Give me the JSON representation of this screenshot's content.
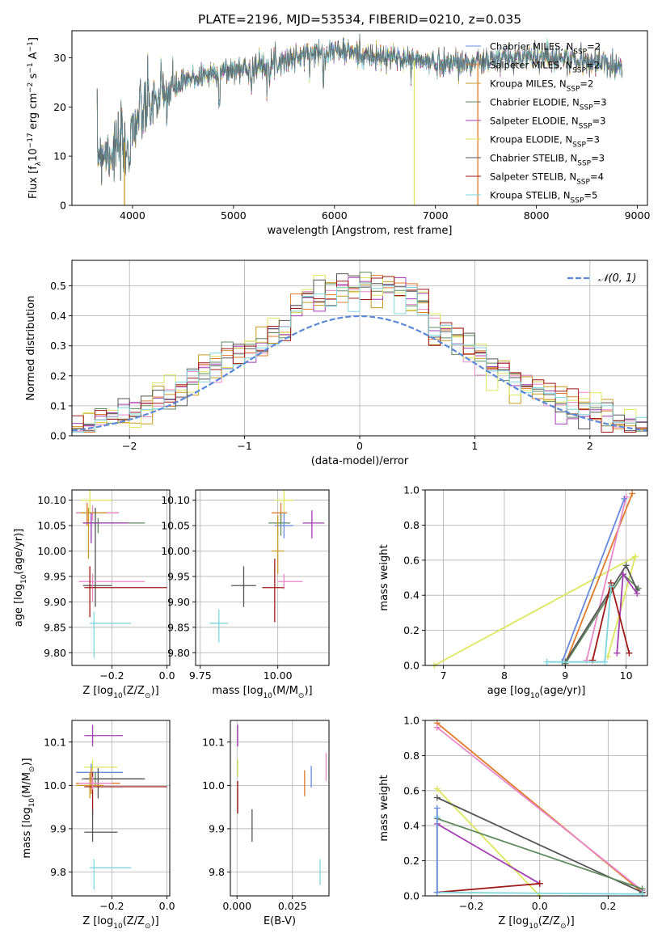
{
  "title": "PLATE=2196, MJD=53534, FIBERID=0210, z=0.035",
  "colors": [
    "#6688dd",
    "#e07a28",
    "#c99a20",
    "#5e8a5e",
    "#a23cb0",
    "#dde65a",
    "#555555",
    "#a01818",
    "#7ed6dd",
    "#e888c8"
  ],
  "chart_data": [
    {
      "id": "spectrum",
      "type": "line",
      "xlabel": "wavelength [Angstrom, rest frame]",
      "ylabel": "Flux [f",
      "ylabel_sub": "λ",
      "ylabel_rest": "10",
      "ylabel_sup": "−17",
      "ylabel_units": " erg cm",
      "ylabel_sup2": "−2",
      "ylabel_units2": " s",
      "ylabel_sup3": "−1",
      "ylabel_units3": " A",
      "ylabel_sup4": "−1",
      "ylabel_end": "]",
      "xlim": [
        3400,
        9100
      ],
      "ylim": [
        0,
        35.5
      ],
      "xticks": [
        4000,
        5000,
        6000,
        7000,
        8000,
        9000
      ],
      "yticks": [
        0,
        10,
        20,
        30
      ],
      "continuum": [
        [
          3650,
          11
        ],
        [
          3800,
          11
        ],
        [
          3900,
          12
        ],
        [
          4000,
          16
        ],
        [
          4100,
          19
        ],
        [
          4200,
          21
        ],
        [
          4300,
          22
        ],
        [
          4500,
          25
        ],
        [
          4700,
          26.5
        ],
        [
          5000,
          27.5
        ],
        [
          5200,
          28
        ],
        [
          5400,
          29
        ],
        [
          5600,
          30
        ],
        [
          5800,
          31
        ],
        [
          6000,
          31.5
        ],
        [
          6200,
          31
        ],
        [
          6400,
          30
        ],
        [
          6600,
          30
        ],
        [
          6800,
          29.5
        ],
        [
          7000,
          29
        ],
        [
          7200,
          29
        ],
        [
          7400,
          29
        ],
        [
          7600,
          29.5
        ],
        [
          7800,
          30
        ],
        [
          8000,
          30.5
        ],
        [
          8200,
          30
        ],
        [
          8400,
          29.5
        ],
        [
          8600,
          29
        ],
        [
          8850,
          28.5
        ]
      ],
      "drops": [
        {
          "x": 3920,
          "series": 2
        },
        {
          "x": 6790,
          "series": 5
        },
        {
          "x": 7420,
          "series": 1
        }
      ],
      "series": [
        {
          "name": "Chabrier MILES, N",
          "sub": "SSP",
          "eq": "=2"
        },
        {
          "name": "Salpeter MILES, N",
          "sub": "SSP",
          "eq": "=2"
        },
        {
          "name": "Kroupa MILES, N",
          "sub": "SSP",
          "eq": "=2"
        },
        {
          "name": "Chabrier ELODIE, N",
          "sub": "SSP",
          "eq": "=3"
        },
        {
          "name": "Salpeter ELODIE, N",
          "sub": "SSP",
          "eq": "=3"
        },
        {
          "name": "Kroupa ELODIE, N",
          "sub": "SSP",
          "eq": "=3"
        },
        {
          "name": "Chabrier STELIB, N",
          "sub": "SSP",
          "eq": "=3"
        },
        {
          "name": "Salpeter STELIB, N",
          "sub": "SSP",
          "eq": "=4"
        },
        {
          "name": "Kroupa STELIB, N",
          "sub": "SSP",
          "eq": "=5"
        }
      ]
    },
    {
      "id": "hist",
      "type": "area",
      "xlabel": "(data-model)/error",
      "ylabel": "Normed distribution",
      "xlim": [
        -2.5,
        2.5
      ],
      "ylim": [
        0,
        0.585
      ],
      "xticks": [
        -2,
        -1,
        0,
        1,
        2
      ],
      "xtick_labels": [
        "−2",
        "−1",
        "0",
        "1",
        "2"
      ],
      "yticks": [
        0.0,
        0.1,
        0.2,
        0.3,
        0.4,
        0.5
      ],
      "ytick_labels": [
        "0.0",
        "0.1",
        "0.2",
        "0.3",
        "0.4",
        "0.5"
      ],
      "bin_width": 0.1,
      "legend": "𝒩(0, 1)"
    },
    {
      "id": "age_vs_Z",
      "type": "scatter",
      "xlabel": "Z [log",
      "xlabel_sub": "10",
      "xlabel_rest": "(Z/Z",
      "xlabel_sub2": "⊙",
      "xlabel_end": ")]",
      "ylabel": "age  [log",
      "ylabel_sub": "10",
      "ylabel_rest": "(age/yr)]",
      "xlim": [
        -0.345,
        0.01
      ],
      "ylim": [
        9.775,
        10.12
      ],
      "xticks": [
        -0.2,
        0.0
      ],
      "xtick_labels": [
        "−0.2",
        "0.0"
      ],
      "yticks": [
        9.8,
        9.85,
        9.9,
        9.95,
        10.0,
        10.05,
        10.1
      ],
      "ytick_labels": [
        "9.80",
        "9.85",
        "9.90",
        "9.95",
        "10.00",
        "10.05",
        "10.10"
      ],
      "points": [
        {
          "c": 5,
          "x": -0.28,
          "xl": -0.315,
          "xh": -0.2,
          "y": 10.1,
          "yl": 10.075,
          "yh": 10.12
        },
        {
          "c": 1,
          "x": -0.29,
          "xl": -0.33,
          "xh": -0.175,
          "y": 10.075,
          "yl": 10.05,
          "yh": 10.095
        },
        {
          "c": 9,
          "x": -0.27,
          "xl": -0.33,
          "xh": -0.175,
          "y": 10.075,
          "yl": 10.06,
          "yh": 10.09
        },
        {
          "c": 2,
          "x": -0.285,
          "xl": -0.315,
          "xh": -0.22,
          "y": 10.075,
          "yl": 9.985,
          "yh": 10.085
        },
        {
          "c": 0,
          "x": -0.275,
          "xl": -0.305,
          "xh": -0.165,
          "y": 10.055,
          "yl": 10.02,
          "yh": 10.075
        },
        {
          "c": 3,
          "x": -0.25,
          "xl": -0.305,
          "xh": -0.08,
          "y": 10.055,
          "yl": 10.035,
          "yh": 10.065
        },
        {
          "c": 4,
          "x": -0.275,
          "xl": -0.305,
          "xh": -0.14,
          "y": 10.055,
          "yl": 10.015,
          "yh": 10.075
        },
        {
          "c": 6,
          "x": -0.26,
          "xl": -0.305,
          "xh": -0.2,
          "y": 9.932,
          "yl": 9.89,
          "yh": 10.085
        },
        {
          "c": 9,
          "x": -0.27,
          "xl": -0.32,
          "xh": -0.08,
          "y": 9.94,
          "yl": 9.9,
          "yh": 9.955
        },
        {
          "c": 7,
          "x": -0.28,
          "xl": -0.3,
          "xh": 0.0,
          "y": 9.928,
          "yl": 9.87,
          "yh": 9.97
        },
        {
          "c": 8,
          "x": -0.265,
          "xl": -0.28,
          "xh": -0.13,
          "y": 9.858,
          "yl": 9.79,
          "yh": 9.88
        }
      ]
    },
    {
      "id": "age_vs_mass",
      "type": "scatter",
      "xlabel": "mass [log",
      "xlabel_sub": "10",
      "xlabel_rest": "(M/M",
      "xlabel_sub2": "⊙",
      "xlabel_end": ")]",
      "xlim": [
        9.735,
        10.165
      ],
      "ylim": [
        9.775,
        10.12
      ],
      "xticks": [
        9.75,
        10.0
      ],
      "xtick_labels": [
        "9.75",
        "10.00"
      ],
      "yticks": [
        9.8,
        9.85,
        9.9,
        9.95,
        10.0,
        10.05,
        10.1
      ],
      "ytick_labels": [
        "9.80",
        "9.85",
        "9.90",
        "9.95",
        "10.00",
        "10.05",
        "10.10"
      ],
      "points": [
        {
          "c": 5,
          "x": 10.02,
          "xl": 9.99,
          "xh": 10.05,
          "y": 10.1,
          "yl": 10.075,
          "yh": 10.12
        },
        {
          "c": 1,
          "x": 10.01,
          "xl": 9.98,
          "xh": 10.03,
          "y": 10.075,
          "yl": 10.055,
          "yh": 10.095
        },
        {
          "c": 4,
          "x": 10.11,
          "xl": 10.08,
          "xh": 10.15,
          "y": 10.055,
          "yl": 10.025,
          "yh": 10.08
        },
        {
          "c": 3,
          "x": 10.01,
          "xl": 9.97,
          "xh": 10.04,
          "y": 10.055,
          "yl": 10.03,
          "yh": 10.075
        },
        {
          "c": 0,
          "x": 10.02,
          "xl": 9.99,
          "xh": 10.05,
          "y": 10.05,
          "yl": 10.025,
          "yh": 10.075
        },
        {
          "c": 2,
          "x": 10.0,
          "xl": 9.98,
          "xh": 10.02,
          "y": 10.0,
          "yl": 9.955,
          "yh": 10.07
        },
        {
          "c": 9,
          "x": 10.02,
          "xl": 10.0,
          "xh": 10.08,
          "y": 9.94,
          "yl": 9.925,
          "yh": 9.955
        },
        {
          "c": 6,
          "x": 9.89,
          "xl": 9.85,
          "xh": 9.93,
          "y": 9.932,
          "yl": 9.89,
          "yh": 9.97
        },
        {
          "c": 7,
          "x": 9.99,
          "xl": 9.95,
          "xh": 10.02,
          "y": 9.928,
          "yl": 9.86,
          "yh": 9.985
        },
        {
          "c": 8,
          "x": 9.81,
          "xl": 9.78,
          "xh": 9.84,
          "y": 9.858,
          "yl": 9.82,
          "yh": 9.885
        }
      ]
    },
    {
      "id": "weight_vs_age",
      "type": "line",
      "xlabel": "age  [log",
      "xlabel_sub": "10",
      "xlabel_rest": "(age/yr)]",
      "ylabel": "mass weight",
      "xlim": [
        6.7,
        10.35
      ],
      "ylim": [
        0,
        1
      ],
      "xticks": [
        7,
        8,
        9,
        10
      ],
      "yticks": [
        0,
        0.2,
        0.4,
        0.6,
        0.8,
        1.0
      ],
      "ytick_labels": [
        "0.0",
        "0.2",
        "0.4",
        "0.6",
        "0.8",
        "1.0"
      ],
      "series": [
        {
          "c": 5,
          "pts": [
            [
              6.85,
              0.0
            ],
            [
              10.15,
              0.62
            ],
            [
              9.7,
              0.05
            ]
          ]
        },
        {
          "c": 1,
          "pts": [
            [
              9.0,
              0.01
            ],
            [
              10.1,
              0.98
            ]
          ]
        },
        {
          "c": 9,
          "pts": [
            [
              9.35,
              0.03
            ],
            [
              10.0,
              0.96
            ]
          ]
        },
        {
          "c": 0,
          "pts": [
            [
              8.95,
              0.02
            ],
            [
              9.97,
              0.95
            ]
          ]
        },
        {
          "c": 3,
          "pts": [
            [
              9.0,
              0.01
            ],
            [
              9.95,
              0.52
            ],
            [
              10.2,
              0.44
            ]
          ]
        },
        {
          "c": 6,
          "pts": [
            [
              9.0,
              0.02
            ],
            [
              10.0,
              0.57
            ],
            [
              10.18,
              0.43
            ]
          ]
        },
        {
          "c": 4,
          "pts": [
            [
              9.85,
              0.07
            ],
            [
              9.95,
              0.52
            ],
            [
              10.18,
              0.41
            ]
          ]
        },
        {
          "c": 7,
          "pts": [
            [
              9.45,
              0.03
            ],
            [
              9.75,
              0.47
            ],
            [
              10.05,
              0.07
            ]
          ]
        },
        {
          "c": 8,
          "pts": [
            [
              8.7,
              0.02
            ],
            [
              9.65,
              0.02
            ],
            [
              9.75,
              0.45
            ]
          ]
        }
      ]
    },
    {
      "id": "mass_vs_Z",
      "type": "scatter",
      "xlabel": "Z [log",
      "xlabel_sub": "10",
      "xlabel_rest": "(Z/Z",
      "xlabel_sub2": "⊙",
      "xlabel_end": ")]",
      "ylabel": "mass [log",
      "ylabel_sub": "10",
      "ylabel_rest": "(M/M",
      "ylabel_sub2": "⊙",
      "ylabel_end": ")]",
      "xlim": [
        -0.345,
        0.01
      ],
      "ylim": [
        9.745,
        10.15
      ],
      "xticks": [
        -0.2,
        0.0
      ],
      "xtick_labels": [
        "−0.2",
        "0.0"
      ],
      "yticks": [
        9.8,
        9.9,
        10.0,
        10.1
      ],
      "ytick_labels": [
        "9.8",
        "9.9",
        "10.0",
        "10.1"
      ],
      "points": [
        {
          "c": 4,
          "x": -0.27,
          "xl": -0.3,
          "xh": -0.16,
          "y": 10.115,
          "yl": 10.09,
          "yh": 10.14
        },
        {
          "c": 5,
          "x": -0.27,
          "xl": -0.3,
          "xh": -0.18,
          "y": 10.042,
          "yl": 10.025,
          "yh": 10.06
        },
        {
          "c": 0,
          "x": -0.275,
          "xl": -0.33,
          "xh": -0.16,
          "y": 10.03,
          "yl": 10.01,
          "yh": 10.05
        },
        {
          "c": 3,
          "x": -0.26,
          "xl": -0.31,
          "xh": -0.09,
          "y": 10.015,
          "yl": 10.0,
          "yh": 10.03
        },
        {
          "c": 6,
          "x": -0.25,
          "xl": -0.3,
          "xh": -0.08,
          "y": 10.015,
          "yl": 9.97,
          "yh": 10.04
        },
        {
          "c": 1,
          "x": -0.275,
          "xl": -0.33,
          "xh": -0.17,
          "y": 10.005,
          "yl": 9.98,
          "yh": 10.04
        },
        {
          "c": 2,
          "x": -0.28,
          "xl": -0.33,
          "xh": -0.23,
          "y": 10.0,
          "yl": 9.97,
          "yh": 10.03
        },
        {
          "c": 7,
          "x": -0.27,
          "xl": -0.3,
          "xh": 0.0,
          "y": 9.997,
          "yl": 9.93,
          "yh": 10.03
        },
        {
          "c": 9,
          "x": -0.27,
          "xl": -0.32,
          "xh": -0.2,
          "y": 10.005,
          "yl": 9.99,
          "yh": 10.02
        },
        {
          "c": 6,
          "x": -0.27,
          "xl": -0.3,
          "xh": -0.18,
          "y": 9.892,
          "yl": 9.87,
          "yh": 9.945
        },
        {
          "c": 8,
          "x": -0.265,
          "xl": -0.28,
          "xh": -0.13,
          "y": 9.81,
          "yl": 9.76,
          "yh": 9.83
        }
      ]
    },
    {
      "id": "mass_vs_EBV",
      "type": "scatter",
      "xlabel": "E(B-V)",
      "xlim": [
        -0.003,
        0.0415
      ],
      "ylim": [
        9.745,
        10.15
      ],
      "xticks": [
        0.0,
        0.025
      ],
      "xtick_labels": [
        "0.000",
        "0.025"
      ],
      "yticks": [
        9.8,
        9.9,
        10.0,
        10.1
      ],
      "ytick_labels": [
        "9.8",
        "9.9",
        "10.0",
        "10.1"
      ],
      "points": [
        {
          "c": 4,
          "x": 0.0003,
          "y": 10.11,
          "yl": 10.09,
          "yh": 10.14
        },
        {
          "c": 5,
          "x": 0.0003,
          "y": 10.04,
          "yl": 10.02,
          "yh": 10.06
        },
        {
          "c": 7,
          "x": 0.0003,
          "y": 9.975,
          "yl": 9.935,
          "yh": 10.01
        },
        {
          "c": 6,
          "x": 0.0068,
          "y": 9.91,
          "yl": 9.87,
          "yh": 9.945
        },
        {
          "c": 1,
          "x": 0.0305,
          "y": 10.0,
          "yl": 9.975,
          "yh": 10.035
        },
        {
          "c": 0,
          "x": 0.0335,
          "y": 10.02,
          "yl": 9.995,
          "yh": 10.045
        },
        {
          "c": 9,
          "x": 0.0402,
          "y": 10.04,
          "yl": 10.01,
          "yh": 10.075
        },
        {
          "c": 8,
          "x": 0.0375,
          "y": 9.8,
          "yl": 9.77,
          "yh": 9.83
        }
      ]
    },
    {
      "id": "weight_vs_Z",
      "type": "line",
      "xlabel": "Z [log",
      "xlabel_sub": "10",
      "xlabel_rest": "(Z/Z",
      "xlabel_sub2": "⊙",
      "xlabel_end": ")]",
      "ylabel": "mass weight",
      "xlim": [
        -0.335,
        0.315
      ],
      "ylim": [
        0,
        1
      ],
      "xticks": [
        -0.2,
        0.0,
        0.2
      ],
      "xtick_labels": [
        "−0.2",
        "0.0",
        "0.2"
      ],
      "yticks": [
        0,
        0.2,
        0.4,
        0.6,
        0.8,
        1.0
      ],
      "ytick_labels": [
        "0.0",
        "0.2",
        "0.4",
        "0.6",
        "0.8",
        "1.0"
      ],
      "series": [
        {
          "c": 1,
          "pts": [
            [
              -0.3,
              0.985
            ],
            [
              0.3,
              0.02
            ]
          ]
        },
        {
          "c": 9,
          "pts": [
            [
              -0.3,
              0.96
            ],
            [
              0.3,
              0.03
            ]
          ]
        },
        {
          "c": 5,
          "pts": [
            [
              -0.3,
              0.61
            ],
            [
              0.0,
              0.0
            ]
          ]
        },
        {
          "c": 6,
          "pts": [
            [
              -0.3,
              0.56
            ],
            [
              0.3,
              0.02
            ]
          ]
        },
        {
          "c": 3,
          "pts": [
            [
              -0.3,
              0.44
            ],
            [
              0.3,
              0.04
            ]
          ]
        },
        {
          "c": 4,
          "pts": [
            [
              -0.3,
              0.41
            ],
            [
              0.0,
              0.07
            ]
          ]
        },
        {
          "c": 7,
          "pts": [
            [
              -0.3,
              0.02
            ],
            [
              0.0,
              0.07
            ]
          ]
        },
        {
          "c": 8,
          "pts": [
            [
              -0.3,
              0.45
            ],
            [
              -0.3,
              0.02
            ],
            [
              0.3,
              0.01
            ]
          ]
        },
        {
          "c": 0,
          "pts": [
            [
              -0.3,
              0.5
            ],
            [
              -0.3,
              0.02
            ]
          ]
        }
      ]
    }
  ]
}
